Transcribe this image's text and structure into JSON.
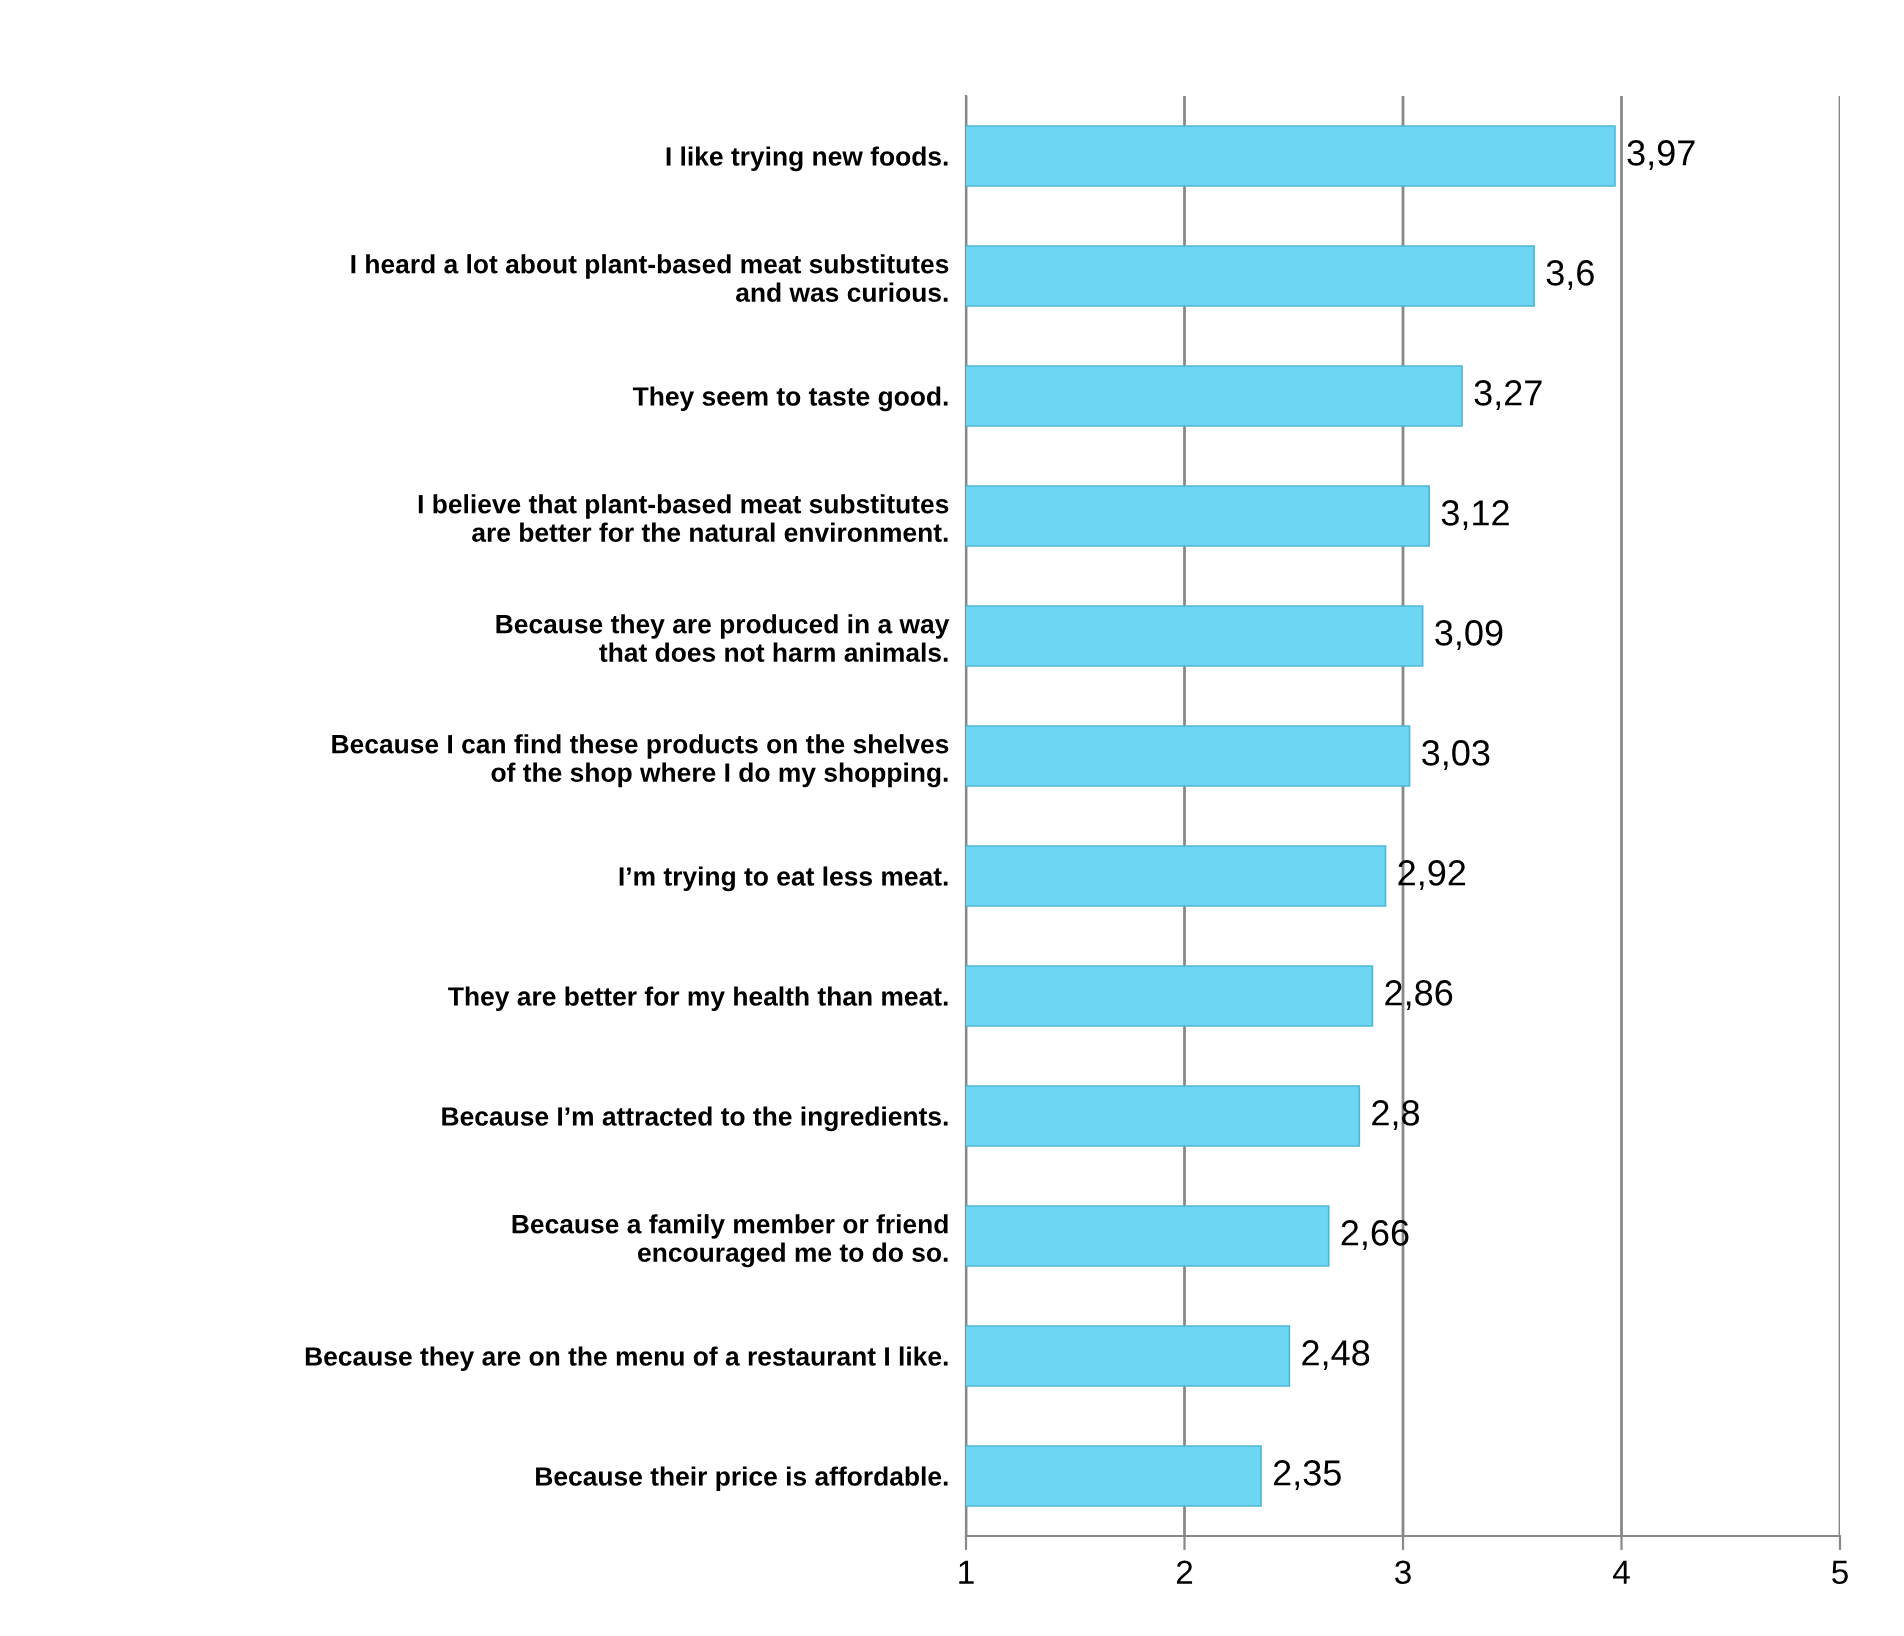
{
  "chart_data": {
    "type": "bar",
    "orientation": "horizontal",
    "categories": [
      "I like trying new foods.",
      "I heard a lot about plant-based meat substitutes\nand was curious.",
      "They seem to taste good.",
      "I believe that plant-based meat substitutes\nare better for the natural environment.",
      "Because they are produced in a way\nthat does not harm animals.",
      "Because I can find these products on the shelves\nof the shop where I do my shopping.",
      "I’m trying to eat less meat.",
      "They are better for my health than meat.",
      "Because I’m attracted to the ingredients.",
      "Because a family member or friend\nencouraged me to do so.",
      "Because they are on the menu of a restaurant I like.",
      "Because their price is affordable."
    ],
    "values": [
      3.97,
      3.6,
      3.27,
      3.12,
      3.09,
      3.03,
      2.92,
      2.86,
      2.8,
      2.66,
      2.48,
      2.35
    ],
    "value_labels": [
      "3,97",
      "3,6",
      "3,27",
      "3,12",
      "3,09",
      "3,03",
      "2,92",
      "2,86",
      "2,8",
      "2,66",
      "2,48",
      "2,35"
    ],
    "color": "#6dd6f2",
    "xlim": [
      1,
      5
    ],
    "xticks": [
      1,
      2,
      3,
      4,
      5
    ],
    "grid": "x",
    "legend": false
  }
}
